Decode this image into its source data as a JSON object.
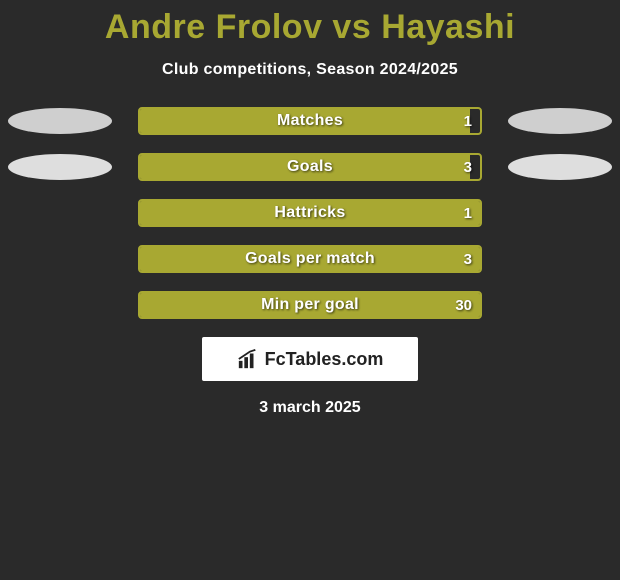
{
  "title": "Andre Frolov vs Hayashi",
  "subtitle": "Club competitions, Season 2024/2025",
  "date": "3 march 2025",
  "brand": "FcTables.com",
  "colors": {
    "background": "#2a2a2a",
    "accent": "#a8a832",
    "bar_fill": "#a8a832",
    "bar_border": "#a8a832",
    "ellipse_row1": "#cfcfcf",
    "ellipse_row2": "#dedede",
    "text_white": "#ffffff"
  },
  "chart": {
    "type": "comparison-bars",
    "bar_width_ratio": {
      "full": 1.0,
      "near_full": 0.97
    },
    "rows": [
      {
        "label": "Matches",
        "value": "1",
        "fill_ratio": 0.97,
        "show_ellipses": true,
        "ellipse_shade": "grey-dark"
      },
      {
        "label": "Goals",
        "value": "3",
        "fill_ratio": 0.97,
        "show_ellipses": true,
        "ellipse_shade": "grey-light"
      },
      {
        "label": "Hattricks",
        "value": "1",
        "fill_ratio": 1.0,
        "show_ellipses": false
      },
      {
        "label": "Goals per match",
        "value": "3",
        "fill_ratio": 1.0,
        "show_ellipses": false
      },
      {
        "label": "Min per goal",
        "value": "30",
        "fill_ratio": 1.0,
        "show_ellipses": false
      }
    ]
  }
}
